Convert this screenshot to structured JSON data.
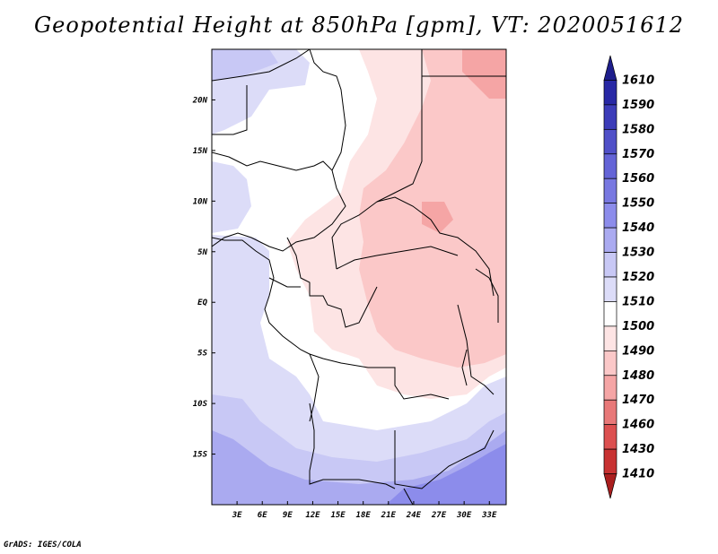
{
  "title": "Geopotential Height at 850hPa [gpm], VT: 2020051612",
  "footer": "GrADS: IGES/COLA",
  "colors": {
    "ocean_low": "#dcdcf8",
    "ocean_blue": "#c8c8f5",
    "blue_mid": "#aaaaf0",
    "blue_dark": "#8c8ceb",
    "white": "#ffffff",
    "pink_light": "#fde4e4",
    "pink": "#fbc8c8",
    "pink_dark": "#f5a5a5",
    "border": "#000000"
  },
  "chart_data": {
    "type": "map",
    "variable": "Geopotential Height",
    "level": "850hPa",
    "units": "gpm",
    "valid_time": "2020051612",
    "lon_range": [
      0,
      35
    ],
    "lat_range": [
      -20,
      25
    ],
    "x_ticks": [
      {
        "lon": 3,
        "label": "3E"
      },
      {
        "lon": 6,
        "label": "6E"
      },
      {
        "lon": 9,
        "label": "9E"
      },
      {
        "lon": 12,
        "label": "12E"
      },
      {
        "lon": 15,
        "label": "15E"
      },
      {
        "lon": 18,
        "label": "18E"
      },
      {
        "lon": 21,
        "label": "21E"
      },
      {
        "lon": 24,
        "label": "24E"
      },
      {
        "lon": 27,
        "label": "27E"
      },
      {
        "lon": 30,
        "label": "30E"
      },
      {
        "lon": 33,
        "label": "33E"
      }
    ],
    "y_ticks": [
      {
        "lat": 20,
        "label": "20N"
      },
      {
        "lat": 15,
        "label": "15N"
      },
      {
        "lat": 10,
        "label": "10N"
      },
      {
        "lat": 5,
        "label": "5N"
      },
      {
        "lat": 0,
        "label": "EQ"
      },
      {
        "lat": -5,
        "label": "5S"
      },
      {
        "lat": -10,
        "label": "10S"
      },
      {
        "lat": -15,
        "label": "15S"
      }
    ],
    "colorbar": {
      "levels": [
        "1610",
        "1590",
        "1580",
        "1570",
        "1560",
        "1550",
        "1540",
        "1530",
        "1520",
        "1510",
        "1500",
        "1490",
        "1480",
        "1470",
        "1460",
        "1430",
        "1410"
      ],
      "colors": [
        "#1e1e8c",
        "#2828a5",
        "#3c3cb9",
        "#5050c8",
        "#6464d7",
        "#7878e1",
        "#8c8ceb",
        "#aaaaf0",
        "#c8c8f5",
        "#dcdcf8",
        "#ffffff",
        "#fde4e4",
        "#fbc8c8",
        "#f5a5a5",
        "#e87878",
        "#dc5050",
        "#c83232",
        "#aa1e1e"
      ]
    }
  }
}
